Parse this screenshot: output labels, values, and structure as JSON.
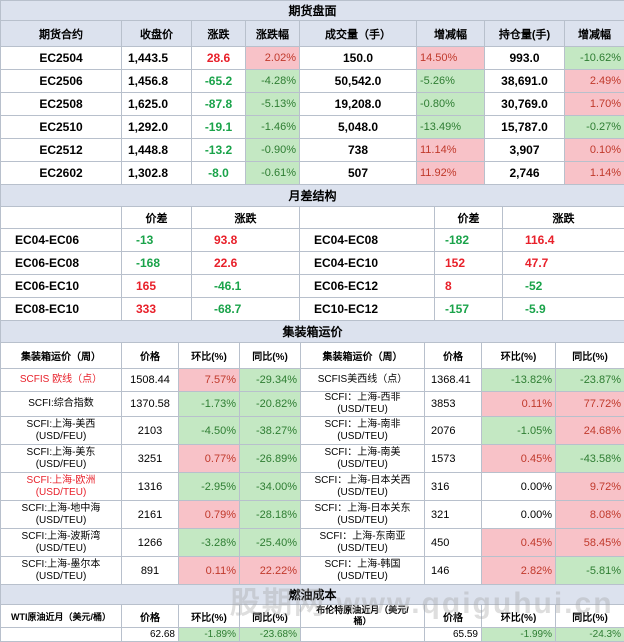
{
  "futures": {
    "title": "期货盘面",
    "headers": [
      "期货合约",
      "收盘价",
      "涨跌",
      "涨跌幅",
      "成交量（手）",
      "增减幅",
      "持仓量(手)",
      "增减幅"
    ],
    "rows": [
      {
        "contract": "EC2504",
        "close": "1,443.5",
        "change": "28.6",
        "change_pct": "2.02%",
        "volume": "150.0",
        "vol_chg": "14.50%",
        "oi": "993.0",
        "oi_chg": "-10.62%"
      },
      {
        "contract": "EC2506",
        "close": "1,456.8",
        "change": "-65.2",
        "change_pct": "-4.28%",
        "volume": "50,542.0",
        "vol_chg": "-5.26%",
        "oi": "38,691.0",
        "oi_chg": "2.49%"
      },
      {
        "contract": "EC2508",
        "close": "1,625.0",
        "change": "-87.8",
        "change_pct": "-5.13%",
        "volume": "19,208.0",
        "vol_chg": "-0.80%",
        "oi": "30,769.0",
        "oi_chg": "1.70%"
      },
      {
        "contract": "EC2510",
        "close": "1,292.0",
        "change": "-19.1",
        "change_pct": "-1.46%",
        "volume": "5,048.0",
        "vol_chg": "-13.49%",
        "oi": "15,787.0",
        "oi_chg": "-0.27%"
      },
      {
        "contract": "EC2512",
        "close": "1,448.8",
        "change": "-13.2",
        "change_pct": "-0.90%",
        "volume": "738",
        "vol_chg": "11.14%",
        "oi": "3,907",
        "oi_chg": "0.10%"
      },
      {
        "contract": "EC2602",
        "close": "1,302.8",
        "change": "-8.0",
        "change_pct": "-0.61%",
        "volume": "507",
        "vol_chg": "11.92%",
        "oi": "2,746",
        "oi_chg": "1.14%"
      }
    ]
  },
  "spread": {
    "title": "月差结构",
    "headers": [
      "",
      "价差",
      "涨跌",
      "",
      "价差",
      "涨跌"
    ],
    "rows": [
      {
        "name1": "EC04-EC06",
        "diff1": "-13",
        "chg1": "93.8",
        "name2": "EC04-EC08",
        "diff2": "-182",
        "chg2": "116.4"
      },
      {
        "name1": "EC06-EC08",
        "diff1": "-168",
        "chg1": "22.6",
        "name2": "EC04-EC10",
        "diff2": "152",
        "chg2": "47.7"
      },
      {
        "name1": "EC06-EC10",
        "diff1": "165",
        "chg1": "-46.1",
        "name2": "EC06-EC12",
        "diff2": "8",
        "chg2": "-52"
      },
      {
        "name1": "EC08-EC10",
        "diff1": "333",
        "chg1": "-68.7",
        "name2": "EC10-EC12",
        "diff2": "-157",
        "chg2": "-5.9"
      }
    ]
  },
  "container": {
    "title": "集装箱运价",
    "headers": [
      "集装箱运价（周）",
      "价格",
      "环比(%)",
      "同比(%)",
      "集装箱运价（周）",
      "价格",
      "环比(%)",
      "同比(%)"
    ],
    "rows": [
      {
        "name1": "SCFIS 欧线（点）",
        "price1": "1508.44",
        "mom1": "7.57%",
        "yoy1": "-29.34%",
        "name2": "SCFIS美西线（点）",
        "price2": "1368.41",
        "mom2": "-13.82%",
        "yoy2": "-23.87%"
      },
      {
        "name1": "SCFI:综合指数",
        "price1": "1370.58",
        "mom1": "-1.73%",
        "yoy1": "-20.82%",
        "name2": "SCFI：上海-西非\n(USD/TEU)",
        "price2": "3853",
        "mom2": "0.11%",
        "yoy2": "77.72%"
      },
      {
        "name1": "SCFI:上海-美西\n(USD/FEU)",
        "price1": "2103",
        "mom1": "-4.50%",
        "yoy1": "-38.27%",
        "name2": "SCFI：上海-南非\n(USD/TEU)",
        "price2": "2076",
        "mom2": "-1.05%",
        "yoy2": "24.68%"
      },
      {
        "name1": "SCFI:上海-美东\n(USD/FEU)",
        "price1": "3251",
        "mom1": "0.77%",
        "yoy1": "-26.89%",
        "name2": "SCFI：上海-南美\n(USD/TEU)",
        "price2": "1573",
        "mom2": "0.45%",
        "yoy2": "-43.58%"
      },
      {
        "name1": "SCFI:上海-欧洲\n(USD/TEU)",
        "price1": "1316",
        "mom1": "-2.95%",
        "yoy1": "-34.00%",
        "name2": "SCFI：上海-日本关西\n(USD/TEU)",
        "price2": "316",
        "mom2": "0.00%",
        "yoy2": "9.72%"
      },
      {
        "name1": "SCFI:上海-地中海\n(USD/TEU)",
        "price1": "2161",
        "mom1": "0.79%",
        "yoy1": "-28.18%",
        "name2": "SCFI：上海-日本关东\n(USD/TEU)",
        "price2": "321",
        "mom2": "0.00%",
        "yoy2": "8.08%"
      },
      {
        "name1": "SCFI:上海-波斯湾\n(USD/TEU)",
        "price1": "1266",
        "mom1": "-3.28%",
        "yoy1": "-25.40%",
        "name2": "SCFI：上海-东南亚\n(USD/TEU)",
        "price2": "450",
        "mom2": "0.45%",
        "yoy2": "58.45%"
      },
      {
        "name1": "SCFI:上海-墨尔本\n(USD/TEU)",
        "price1": "891",
        "mom1": "0.11%",
        "yoy1": "22.22%",
        "name2": "SCFI：上海-韩国\n(USD/TEU)",
        "price2": "146",
        "mom2": "2.82%",
        "yoy2": "-5.81%"
      }
    ]
  },
  "fuel": {
    "title": "燃油成本",
    "header": {
      "name1": "WTI原油近月（美元/桶）",
      "price": "价格",
      "mom": "环比(%)",
      "yoy": "同比(%)",
      "name2": "布伦特原油近月（美元/\n桶）",
      "price2": "价格",
      "mom2": "环比(%)",
      "yoy2": "同比(%)"
    },
    "row": {
      "price1": "62.68",
      "mom1": "-1.89%",
      "yoy1": "-23.68%",
      "price2": "65.59",
      "mom2": "-1.99%",
      "yoy2": "-24.3%"
    }
  },
  "watermark": "股期网 www.qqiguhui.cn",
  "colors": {
    "header_bg": "#dce2ee",
    "red": "#e8202a",
    "green": "#1aa34a",
    "pink_bg": "#f8c2c8",
    "green_bg": "#c4e8c3",
    "border": "#b8c0cc"
  }
}
